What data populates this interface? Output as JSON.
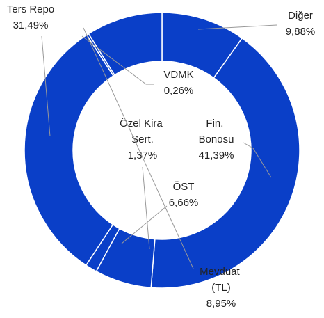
{
  "chart_data": {
    "type": "donut",
    "categories": [
      "Diğer",
      "Fin. Bonosu",
      "ÖST",
      "Özel Kira Sert.",
      "Ters Repo",
      "VDMK",
      "Mevduat (TL)"
    ],
    "values": [
      9.88,
      41.39,
      6.66,
      1.37,
      31.49,
      0.26,
      8.95
    ],
    "value_labels": [
      "9,88%",
      "41,39%",
      "6,66%",
      "1,37%",
      "31,49%",
      "0,26%",
      "8,95%"
    ],
    "color": "#0a3fc8"
  }
}
